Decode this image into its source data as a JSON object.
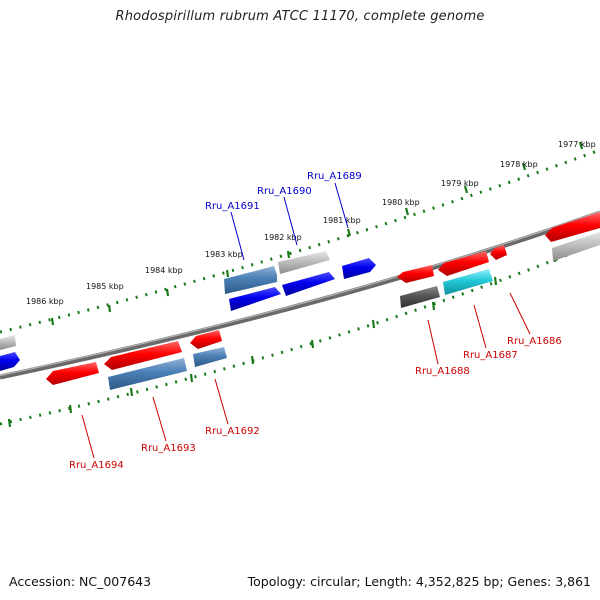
{
  "title": "Rhodospirillum rubrum ATCC 11170, complete genome",
  "footer": {
    "accession": "Accession: NC_007643",
    "summary": "Topology: circular; Length: 4,352,825 bp; Genes: 3,861"
  },
  "colors": {
    "forward_gene": "#ff0000",
    "reverse_gene": "#0000ee",
    "steelblue_gene": "#4a7fb5",
    "gray_gene": "#b8b8b8",
    "darkgray_gene": "#555555",
    "cyan_gene": "#22c8d8",
    "label_top": "#0000cc",
    "label_bottom": "#cc0000",
    "tick": "#1a7a1a"
  },
  "kbp_labels": [
    "1977 kbp",
    "1978 kbp",
    "1979 kbp",
    "1980 kbp",
    "1981 kbp",
    "1982 kbp",
    "1983 kbp",
    "1984 kbp",
    "1985 kbp",
    "1986 kbp"
  ],
  "gene_labels_top": [
    "Rru_A1689",
    "Rru_A1690",
    "Rru_A1691"
  ],
  "gene_labels_bottom": [
    "Rru_A1686",
    "Rru_A1687",
    "Rru_A1688",
    "Rru_A1692",
    "Rru_A1693",
    "Rru_A1694"
  ]
}
